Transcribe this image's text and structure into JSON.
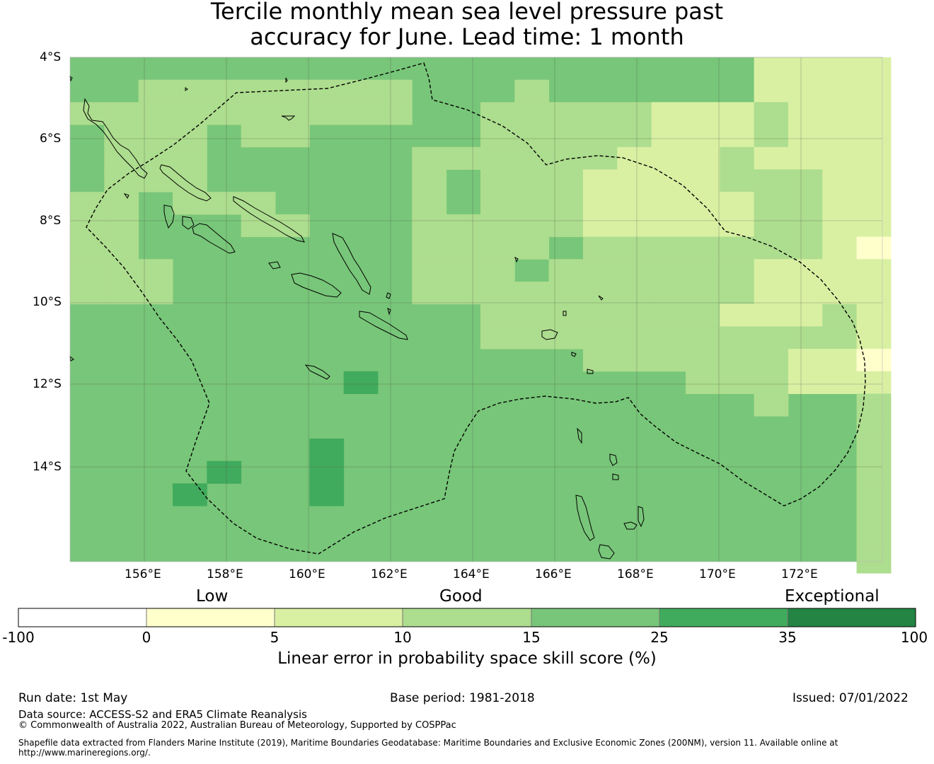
{
  "title": {
    "line1": "Tercile monthly mean sea level pressure past",
    "line2": "accuracy for June. Lead time: 1 month"
  },
  "map": {
    "lat_labels": [
      "4°S",
      "6°S",
      "8°S",
      "10°S",
      "12°S",
      "14°S"
    ],
    "lon_labels": [
      "156°E",
      "158°E",
      "160°E",
      "162°E",
      "164°E",
      "166°E",
      "168°E",
      "170°E",
      "172°E"
    ],
    "extent": {
      "lon_min": 154.2,
      "lon_max": 174.0,
      "lat_max": -4.0,
      "lat_min": -16.3
    },
    "regions": [
      "Solomon Islands EEZ",
      "Vanuatu EEZ"
    ]
  },
  "legend": {
    "categories": [
      "Low",
      "Good",
      "Exceptional"
    ],
    "ticks": [
      "-100",
      "0",
      "5",
      "10",
      "15",
      "25",
      "35",
      "100"
    ],
    "colors": [
      "#ffffff",
      "#ffffcc",
      "#d9f0a3",
      "#addd8e",
      "#78c679",
      "#41ab5d",
      "#238443"
    ],
    "title": "Linear error in probability space skill score (%)"
  },
  "footer": {
    "run_date": "Run date: 1st May",
    "base_period": "Base period: 1981-2018",
    "issued": "Issued: 07/01/2022",
    "data_source": "Data source: ACCESS-S2 and ERA5 Climate Reanalysis",
    "copyright": "© Commonwealth of Australia 2022, Australian Bureau of Meteorology, Supported by COSPPac",
    "shapefile": "Shapefile data extracted from Flanders Marine Institute (2019), Maritime Boundaries Geodatabase: Maritime Boundaries and Exclusive Economic Zones (200NM), version 11. Available online at http://www.marineregions.org/."
  }
}
